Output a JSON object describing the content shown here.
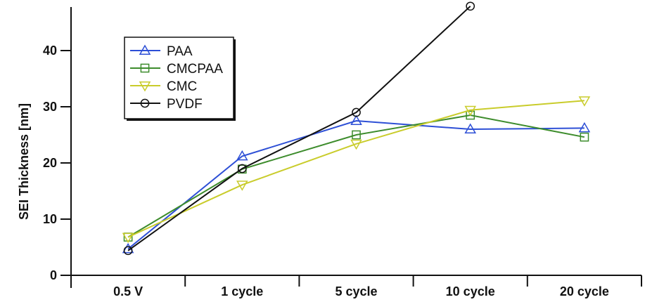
{
  "chart_data": {
    "type": "line",
    "title": "",
    "xlabel": "",
    "ylabel": "SEI Thickness [nm]",
    "categories": [
      "0.5 V",
      "1 cycle",
      "5 cycle",
      "10 cycle",
      "20 cycle"
    ],
    "ylim": [
      0,
      50
    ],
    "yticks": [
      0,
      10,
      20,
      30,
      40
    ],
    "grid": false,
    "legend_position": "top-left",
    "series": [
      {
        "name": "PAA",
        "color": "#2d4fd6",
        "marker": "triangle-up",
        "values": [
          4.7,
          21.2,
          27.5,
          26.0,
          26.2
        ]
      },
      {
        "name": "CMCPAA",
        "color": "#3d8c2c",
        "marker": "square",
        "values": [
          6.8,
          18.9,
          25.0,
          28.5,
          24.6
        ]
      },
      {
        "name": "CMC",
        "color": "#c9cc2b",
        "marker": "triangle-down",
        "values": [
          6.8,
          16.1,
          23.4,
          29.4,
          31.1
        ]
      },
      {
        "name": "PVDF",
        "color": "#111111",
        "marker": "circle",
        "values": [
          4.4,
          19.0,
          29.0,
          47.9,
          null
        ]
      }
    ]
  }
}
